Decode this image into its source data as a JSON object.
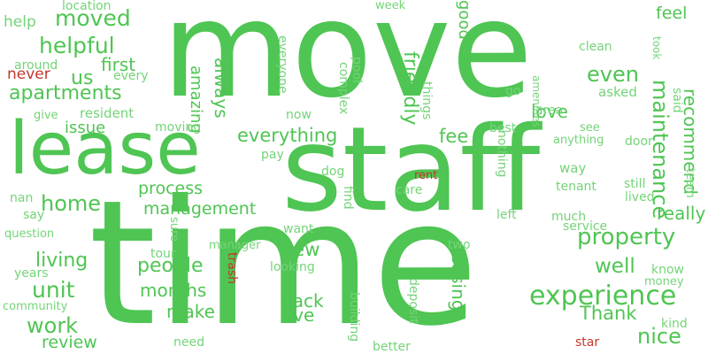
{
  "colors": {
    "background": "#ffffff",
    "positive": "#4fc553",
    "positive_light": "#74d478",
    "negative": "#c0392b"
  },
  "words": [
    {
      "text": "move",
      "color": "positive"
    },
    {
      "text": "staff",
      "color": "positive"
    },
    {
      "text": "time",
      "color": "positive"
    },
    {
      "text": "lease",
      "color": "positive"
    },
    {
      "text": "experience",
      "color": "positive"
    },
    {
      "text": "property",
      "color": "positive"
    },
    {
      "text": "apartments",
      "color": "positive"
    },
    {
      "text": "maintenance",
      "color": "positive"
    },
    {
      "text": "recommend",
      "color": "positive"
    },
    {
      "text": "helpful",
      "color": "positive"
    },
    {
      "text": "moved",
      "color": "positive"
    },
    {
      "text": "everything",
      "color": "positive"
    },
    {
      "text": "management",
      "color": "positive"
    },
    {
      "text": "process",
      "color": "positive"
    },
    {
      "text": "people",
      "color": "positive"
    },
    {
      "text": "living",
      "color": "positive"
    },
    {
      "text": "unit",
      "color": "positive"
    },
    {
      "text": "home",
      "color": "positive"
    },
    {
      "text": "months",
      "color": "positive"
    },
    {
      "text": "make",
      "color": "positive"
    },
    {
      "text": "work",
      "color": "positive"
    },
    {
      "text": "review",
      "color": "positive"
    },
    {
      "text": "first",
      "color": "positive"
    },
    {
      "text": "friendly",
      "color": "positive"
    },
    {
      "text": "amazing",
      "color": "positive"
    },
    {
      "text": "always",
      "color": "positive"
    },
    {
      "text": "issue",
      "color": "positive"
    },
    {
      "text": "fee",
      "color": "positive"
    },
    {
      "text": "love",
      "color": "positive"
    },
    {
      "text": "even",
      "color": "positive"
    },
    {
      "text": "feel",
      "color": "positive"
    },
    {
      "text": "good",
      "color": "positive"
    },
    {
      "text": "us",
      "color": "positive"
    },
    {
      "text": "new",
      "color": "positive"
    },
    {
      "text": "back",
      "color": "positive"
    },
    {
      "text": "live",
      "color": "positive"
    },
    {
      "text": "leasing",
      "color": "positive"
    },
    {
      "text": "really",
      "color": "positive"
    },
    {
      "text": "well",
      "color": "positive"
    },
    {
      "text": "nice",
      "color": "positive"
    },
    {
      "text": "Thank",
      "color": "positive"
    },
    {
      "text": "help",
      "color": "positive_light"
    },
    {
      "text": "location",
      "color": "positive_light"
    },
    {
      "text": "week",
      "color": "positive_light"
    },
    {
      "text": "never",
      "color": "negative"
    },
    {
      "text": "around",
      "color": "positive_light"
    },
    {
      "text": "every",
      "color": "positive_light"
    },
    {
      "text": "give",
      "color": "positive_light"
    },
    {
      "text": "resident",
      "color": "positive_light"
    },
    {
      "text": "moving",
      "color": "positive_light"
    },
    {
      "text": "everyone",
      "color": "positive_light"
    },
    {
      "text": "pool",
      "color": "positive_light"
    },
    {
      "text": "complex",
      "color": "positive_light"
    },
    {
      "text": "things",
      "color": "positive_light"
    },
    {
      "text": "now",
      "color": "positive_light"
    },
    {
      "text": "amenities",
      "color": "positive_light"
    },
    {
      "text": "clean",
      "color": "positive_light"
    },
    {
      "text": "took",
      "color": "positive_light"
    },
    {
      "text": "area",
      "color": "positive_light"
    },
    {
      "text": "go",
      "color": "positive_light"
    },
    {
      "text": "asked",
      "color": "positive_light"
    },
    {
      "text": "said",
      "color": "positive_light"
    },
    {
      "text": "best",
      "color": "positive_light"
    },
    {
      "text": "see",
      "color": "positive_light"
    },
    {
      "text": "anything",
      "color": "positive_light"
    },
    {
      "text": "door",
      "color": "positive_light"
    },
    {
      "text": "team",
      "color": "positive_light"
    },
    {
      "text": "pay",
      "color": "positive_light"
    },
    {
      "text": "way",
      "color": "positive_light"
    },
    {
      "text": "nothing",
      "color": "positive_light"
    },
    {
      "text": "dog",
      "color": "positive_light"
    },
    {
      "text": "rent",
      "color": "negative"
    },
    {
      "text": "care",
      "color": "positive_light"
    },
    {
      "text": "tenant",
      "color": "positive_light"
    },
    {
      "text": "still",
      "color": "positive_light"
    },
    {
      "text": "lived",
      "color": "positive_light"
    },
    {
      "text": "nan",
      "color": "positive_light"
    },
    {
      "text": "say",
      "color": "positive_light"
    },
    {
      "text": "question",
      "color": "positive_light"
    },
    {
      "text": "sure",
      "color": "positive_light"
    },
    {
      "text": "find",
      "color": "positive_light"
    },
    {
      "text": "left",
      "color": "positive_light"
    },
    {
      "text": "much",
      "color": "positive_light"
    },
    {
      "text": "service",
      "color": "positive_light"
    },
    {
      "text": "want",
      "color": "positive_light"
    },
    {
      "text": "manager",
      "color": "positive_light"
    },
    {
      "text": "tour",
      "color": "positive_light"
    },
    {
      "text": "two",
      "color": "positive_light"
    },
    {
      "text": "years",
      "color": "positive_light"
    },
    {
      "text": "trash",
      "color": "negative"
    },
    {
      "text": "looking",
      "color": "positive_light"
    },
    {
      "text": "know",
      "color": "positive_light"
    },
    {
      "text": "money",
      "color": "positive_light"
    },
    {
      "text": "community",
      "color": "positive_light"
    },
    {
      "text": "deposit",
      "color": "positive_light"
    },
    {
      "text": "building",
      "color": "positive_light"
    },
    {
      "text": "kind",
      "color": "positive_light"
    },
    {
      "text": "need",
      "color": "positive_light"
    },
    {
      "text": "better",
      "color": "positive_light"
    },
    {
      "text": "star",
      "color": "negative"
    }
  ]
}
